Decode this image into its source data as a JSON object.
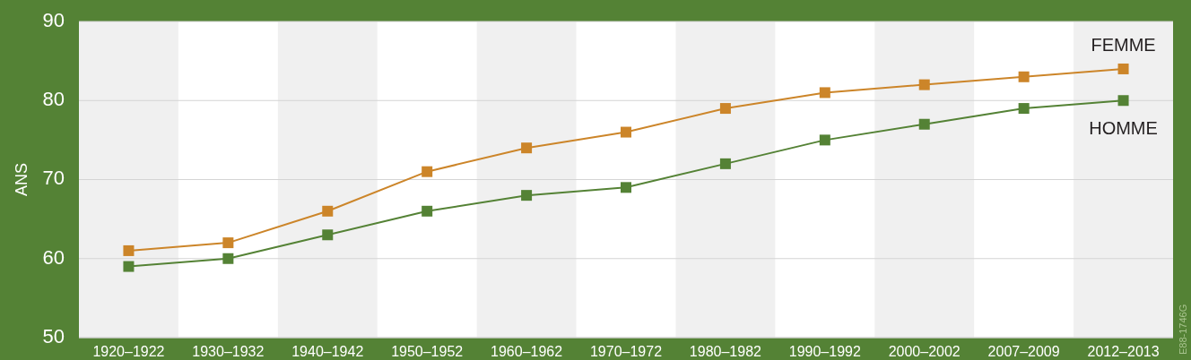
{
  "chart_data": {
    "type": "line",
    "ylabel": "ANS",
    "categories": [
      "1920–1922",
      "1930–1932",
      "1940–1942",
      "1950–1952",
      "1960–1962",
      "1970–1972",
      "1980–1982",
      "1990–1992",
      "2000–2002",
      "2007–2009",
      "2012–2013"
    ],
    "series": [
      {
        "name": "FEMME",
        "color": "#cc8529",
        "values": [
          61,
          62,
          66,
          71,
          74,
          76,
          79,
          81,
          82,
          83,
          84
        ]
      },
      {
        "name": "HOMME",
        "color": "#548235",
        "values": [
          59,
          60,
          63,
          66,
          68,
          69,
          72,
          75,
          77,
          79,
          80
        ]
      }
    ],
    "ylim": [
      50,
      90
    ],
    "yticks": [
      50,
      60,
      70,
      80,
      90
    ],
    "grid": "y",
    "marker": "square",
    "line_style": "solid",
    "annotations": [
      "E88-1746G"
    ]
  }
}
